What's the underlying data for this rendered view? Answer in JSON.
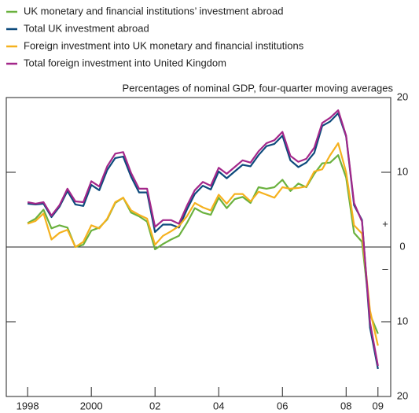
{
  "chart_data": {
    "type": "line",
    "subtitle": "Percentages of nominal GDP, four-quarter moving averages",
    "annotations": [
      "+",
      "–"
    ],
    "x": [
      1998,
      1998.25,
      1998.5,
      1998.75,
      1999,
      1999.25,
      1999.5,
      1999.75,
      2000,
      2000.25,
      2000.5,
      2000.75,
      2001,
      2001.25,
      2001.5,
      2001.75,
      2002,
      2002.25,
      2002.5,
      2002.75,
      2003,
      2003.25,
      2003.5,
      2003.75,
      2004,
      2004.25,
      2004.5,
      2004.75,
      2005,
      2005.25,
      2005.5,
      2005.75,
      2006,
      2006.25,
      2006.5,
      2006.75,
      2007,
      2007.25,
      2007.5,
      2007.75,
      2008,
      2008.25,
      2008.5,
      2008.75,
      2009
    ],
    "series": [
      {
        "name": "UK monetary and financial institutions’ investment abroad",
        "color": "#6ab13e",
        "values": [
          3.2,
          3.8,
          5.0,
          2.5,
          2.9,
          2.6,
          0.0,
          0.3,
          2.2,
          2.6,
          3.7,
          5.9,
          6.6,
          4.6,
          4.1,
          3.4,
          -0.3,
          0.4,
          1.0,
          1.5,
          3.2,
          5.2,
          4.6,
          4.3,
          6.6,
          5.2,
          6.4,
          6.7,
          5.9,
          8.0,
          7.8,
          8.0,
          9.0,
          7.5,
          8.5,
          8.0,
          9.8,
          11.2,
          11.3,
          12.3,
          9.3,
          1.9,
          0.7,
          -9.0,
          -11.6
        ]
      },
      {
        "name": "Total UK investment abroad",
        "color": "#0d4a7c",
        "values": [
          5.8,
          5.7,
          5.8,
          4.0,
          5.4,
          7.5,
          5.7,
          5.5,
          8.3,
          7.6,
          10.3,
          11.9,
          12.1,
          9.4,
          7.3,
          7.3,
          2.0,
          3.0,
          3.0,
          2.6,
          5.0,
          7.1,
          8.2,
          7.7,
          10.1,
          9.2,
          10.1,
          11.0,
          10.8,
          12.3,
          13.5,
          13.8,
          14.9,
          11.6,
          10.7,
          11.3,
          12.6,
          16.2,
          16.8,
          17.9,
          14.8,
          5.6,
          3.6,
          -10.8,
          -16.3
        ]
      },
      {
        "name": "Foreign investment into UK monetary and financial institutions",
        "color": "#f5b11e",
        "values": [
          3.1,
          3.5,
          4.5,
          1.0,
          1.9,
          2.3,
          0.0,
          0.7,
          2.9,
          2.5,
          3.8,
          6.0,
          6.6,
          4.9,
          4.3,
          3.8,
          0.3,
          1.5,
          2.1,
          2.8,
          4.1,
          5.9,
          5.3,
          4.9,
          7.0,
          5.8,
          7.1,
          7.1,
          6.1,
          7.4,
          7.0,
          6.6,
          8.0,
          7.8,
          7.9,
          8.1,
          10.1,
          10.4,
          12.3,
          13.9,
          10.0,
          2.9,
          1.8,
          -8.5,
          -13.2
        ]
      },
      {
        "name": "Total foreign investment into United Kingdom",
        "color": "#a3278a",
        "values": [
          6.0,
          5.8,
          6.0,
          4.2,
          5.6,
          7.8,
          6.1,
          6.0,
          8.8,
          8.1,
          10.8,
          12.5,
          12.7,
          9.9,
          7.8,
          7.8,
          2.7,
          3.6,
          3.6,
          3.1,
          5.5,
          7.6,
          8.7,
          8.2,
          10.6,
          9.8,
          10.7,
          11.6,
          11.3,
          12.8,
          13.9,
          14.3,
          15.4,
          12.2,
          11.4,
          11.8,
          13.3,
          16.6,
          17.3,
          18.3,
          14.9,
          5.9,
          3.4,
          -10.1,
          -15.9
        ]
      }
    ],
    "xlim": [
      1997.33,
      2009.4
    ],
    "xticks": [
      {
        "value": 1998,
        "label": "1998"
      },
      2000,
      {
        "value": 2002,
        "label": "02"
      },
      {
        "value": 2004,
        "label": "04"
      },
      {
        "value": 2006,
        "label": "06"
      },
      {
        "value": 2008,
        "label": "08"
      },
      {
        "value": 2009,
        "label": "09"
      }
    ],
    "ylim": [
      -20,
      20
    ],
    "yticks": [
      {
        "value": -20,
        "label": "20"
      },
      {
        "value": -10,
        "label": "10"
      },
      0,
      10,
      20
    ],
    "grid": false
  }
}
